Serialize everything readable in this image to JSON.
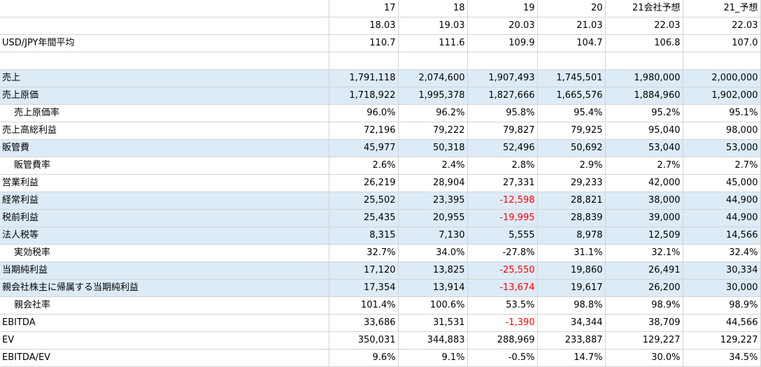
{
  "columns": [
    {
      "fy": "17",
      "period": "18.03"
    },
    {
      "fy": "18",
      "period": "19.03"
    },
    {
      "fy": "19",
      "period": "20.03"
    },
    {
      "fy": "20",
      "period": "21.03"
    },
    {
      "fy": "21会社予想",
      "period": "22.03"
    },
    {
      "fy": "21_予想",
      "period": "22.03"
    }
  ],
  "rows": [
    {
      "label": "USD/JPY年間平均",
      "indent": false,
      "highlight": false,
      "values": [
        "110.7",
        "111.6",
        "109.9",
        "104.7",
        "106.8",
        "107.0"
      ]
    },
    {
      "label": "",
      "indent": false,
      "highlight": false,
      "values": [
        "",
        "",
        "",
        "",
        "",
        ""
      ]
    },
    {
      "label": "売上",
      "indent": false,
      "highlight": true,
      "values": [
        "1,791,118",
        "2,074,600",
        "1,907,493",
        "1,745,501",
        "1,980,000",
        "2,000,000"
      ]
    },
    {
      "label": "売上原価",
      "indent": false,
      "highlight": true,
      "values": [
        "1,718,922",
        "1,995,378",
        "1,827,666",
        "1,665,576",
        "1,884,960",
        "1,902,000"
      ]
    },
    {
      "label": "売上原価率",
      "indent": true,
      "highlight": false,
      "values": [
        "96.0%",
        "96.2%",
        "95.8%",
        "95.4%",
        "95.2%",
        "95.1%"
      ]
    },
    {
      "label": "売上高総利益",
      "indent": false,
      "highlight": false,
      "values": [
        "72,196",
        "79,222",
        "79,827",
        "79,925",
        "95,040",
        "98,000"
      ]
    },
    {
      "label": "販管費",
      "indent": false,
      "highlight": true,
      "values": [
        "45,977",
        "50,318",
        "52,496",
        "50,692",
        "53,040",
        "53,000"
      ]
    },
    {
      "label": "販管費率",
      "indent": true,
      "highlight": false,
      "values": [
        "2.6%",
        "2.4%",
        "2.8%",
        "2.9%",
        "2.7%",
        "2.7%"
      ]
    },
    {
      "label": "営業利益",
      "indent": false,
      "highlight": false,
      "values": [
        "26,219",
        "28,904",
        "27,331",
        "29,233",
        "42,000",
        "45,000"
      ]
    },
    {
      "label": "経常利益",
      "indent": false,
      "highlight": true,
      "values": [
        "25,502",
        "23,395",
        "-12,598",
        "28,821",
        "38,000",
        "44,900"
      ]
    },
    {
      "label": "税前利益",
      "indent": false,
      "highlight": true,
      "values": [
        "25,435",
        "20,955",
        "-19,995",
        "28,839",
        "39,000",
        "44,900"
      ]
    },
    {
      "label": "法人税等",
      "indent": false,
      "highlight": true,
      "values": [
        "8,315",
        "7,130",
        "5,555",
        "8,978",
        "12,509",
        "14,566"
      ]
    },
    {
      "label": "実効税率",
      "indent": true,
      "highlight": false,
      "values": [
        "32.7%",
        "34.0%",
        "-27.8%",
        "31.1%",
        "32.1%",
        "32.4%"
      ]
    },
    {
      "label": "当期純利益",
      "indent": false,
      "highlight": true,
      "values": [
        "17,120",
        "13,825",
        "-25,550",
        "19,860",
        "26,491",
        "30,334"
      ]
    },
    {
      "label": "親会社株主に帰属する当期純利益",
      "indent": false,
      "highlight": true,
      "values": [
        "17,354",
        "13,914",
        "-13,674",
        "19,617",
        "26,200",
        "30,000"
      ]
    },
    {
      "label": "親会社率",
      "indent": true,
      "highlight": false,
      "values": [
        "101.4%",
        "100.6%",
        "53.5%",
        "98.8%",
        "98.9%",
        "98.9%"
      ]
    },
    {
      "label": "EBITDA",
      "indent": false,
      "highlight": false,
      "values": [
        "33,686",
        "31,531",
        "-1,390",
        "34,344",
        "38,709",
        "44,566"
      ]
    },
    {
      "label": "EV",
      "indent": false,
      "highlight": false,
      "values": [
        "350,031",
        "344,883",
        "288,969",
        "233,887",
        "129,227",
        "129,227"
      ]
    },
    {
      "label": "EBITDA/EV",
      "indent": false,
      "highlight": false,
      "values": [
        "9.6%",
        "9.1%",
        "-0.5%",
        "14.7%",
        "30.0%",
        "34.5%"
      ]
    }
  ],
  "colors": {
    "highlight": "#ddebf7",
    "negative_red": "#ff0000",
    "gridline": "#d4d4d4"
  }
}
